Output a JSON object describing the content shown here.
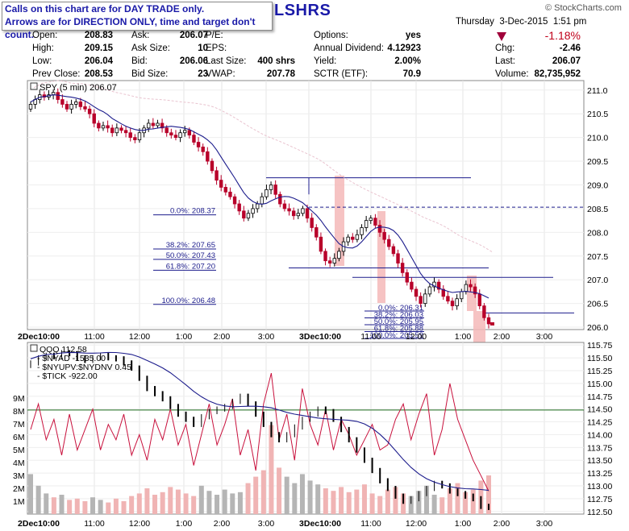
{
  "notice": {
    "line1": "Calls on this chart are for DAY TRADE only.",
    "line2": "Arrows are for DIRECTION ONLY, time and target don't count."
  },
  "title_fragment": "LSHRS",
  "watermark": "© StockCharts.com",
  "header": {
    "day": "Thursday",
    "date": "3-Dec-2015",
    "time": "1:51 pm",
    "change_pct": "-1.18%",
    "fields": [
      {
        "label": "Open:",
        "value": "208.83"
      },
      {
        "label": "High:",
        "value": "209.15"
      },
      {
        "label": "Low:",
        "value": "206.04"
      },
      {
        "label": "Prev Close:",
        "value": "208.53"
      },
      {
        "label": "Ask:",
        "value": "206.07"
      },
      {
        "label": "Ask Size:",
        "value": "10"
      },
      {
        "label": "Bid:",
        "value": "206.06"
      },
      {
        "label": "Bid Size:",
        "value": "23"
      },
      {
        "label": "P/E:",
        "value": ""
      },
      {
        "label": "EPS:",
        "value": ""
      },
      {
        "label": "Last Size:",
        "value": "400 shrs"
      },
      {
        "label": "VWAP:",
        "value": "207.78"
      },
      {
        "label": "Options:",
        "value": "yes"
      },
      {
        "label": "Annual Dividend:",
        "value": "4.12923"
      },
      {
        "label": "Yield:",
        "value": "2.00%"
      },
      {
        "label": "SCTR (ETF):",
        "value": "70.9"
      },
      {
        "label": "Chg:",
        "value": "-2.46"
      },
      {
        "label": "Last:",
        "value": "206.07"
      },
      {
        "label": "Volume:",
        "value": "82,735,952"
      }
    ]
  },
  "colors": {
    "title": "#1a1aa8",
    "up": "#000000",
    "down": "#b8002a",
    "ma": "#1c1c8c",
    "fib": "#1c1c8c",
    "highlight": "#f4b8b8",
    "breadth": "#c8103c",
    "hline": "#1b6b1b",
    "vol_up": "#b5b5b5",
    "vol_down": "#f0b4b4"
  },
  "chart_data": [
    {
      "type": "candlestick",
      "legend": "SPY (5 min) 206.07",
      "x_ticks": [
        "2Dec10:00",
        "11:00",
        "12:00",
        "1:00",
        "2:00",
        "3:00",
        "3Dec10:00",
        "11:00",
        "12:00",
        "1:00",
        "2:00",
        "3:00"
      ],
      "ylim": [
        205.95,
        211.2
      ],
      "y_ticks": [
        206.0,
        206.5,
        207.0,
        207.5,
        208.0,
        208.5,
        209.0,
        209.5,
        210.0,
        210.5,
        211.0
      ],
      "close": [
        210.7,
        210.8,
        210.9,
        210.85,
        210.9,
        210.95,
        210.8,
        210.7,
        210.6,
        210.7,
        210.75,
        210.65,
        210.6,
        210.5,
        210.3,
        210.2,
        210.25,
        210.2,
        210.1,
        210.2,
        210.15,
        210.1,
        210.0,
        209.95,
        210.1,
        210.2,
        210.3,
        210.25,
        210.3,
        210.2,
        210.1,
        210.05,
        210.0,
        210.1,
        210.15,
        210.05,
        209.9,
        209.8,
        209.7,
        209.5,
        209.3,
        209.1,
        208.95,
        208.85,
        208.75,
        208.6,
        208.45,
        208.3,
        208.4,
        208.5,
        208.6,
        208.75,
        208.9,
        209.0,
        208.8,
        208.6,
        208.5,
        208.45,
        208.35,
        208.4,
        208.5,
        208.3,
        208.1,
        207.9,
        207.6,
        207.4,
        207.35,
        207.45,
        207.6,
        207.8,
        207.9,
        207.85,
        207.95,
        208.1,
        208.25,
        208.3,
        208.15,
        208.0,
        207.85,
        207.7,
        207.55,
        207.35,
        207.15,
        206.95,
        206.8,
        206.65,
        206.5,
        206.7,
        206.85,
        206.95,
        206.8,
        206.65,
        206.55,
        206.45,
        206.6,
        206.75,
        206.9,
        206.85,
        206.7,
        206.45,
        206.2,
        206.07
      ],
      "fib_left": [
        {
          "label": "0.0%: 208.37",
          "value": 208.37
        },
        {
          "label": "38.2%: 207.65",
          "value": 207.65
        },
        {
          "label": "50.0%: 207.43",
          "value": 207.43
        },
        {
          "label": "61.8%: 207.20",
          "value": 207.2
        },
        {
          "label": "100.0%: 206.48",
          "value": 206.48
        }
      ],
      "fib_right": [
        {
          "label": "0.0%: 206.31",
          "value": 206.31
        },
        {
          "label": "38.2%: 206.03",
          "value": 206.03
        },
        {
          "label": "50.0%: 205.95",
          "value": 205.95
        },
        {
          "label": "61.8%: 205.88",
          "value": 205.88
        },
        {
          "label": "100.0%: 205.59",
          "value": 205.59
        }
      ],
      "levels": [
        209.15,
        208.53,
        207.25,
        207.05,
        206.3
      ]
    },
    {
      "type": "line+volume",
      "legend": [
        "QQQ 112.58",
        "$NYAD -1535.00",
        "$NYUPV:$NYDNV 0.45",
        "$TICK -922.00"
      ],
      "ylim": [
        112.45,
        115.8
      ],
      "y_ticks": [
        112.5,
        112.75,
        113.0,
        113.25,
        113.5,
        113.75,
        114.0,
        114.25,
        114.5,
        114.75,
        115.0,
        115.25,
        115.5,
        115.75
      ],
      "volume_ticks": [
        "1M",
        "2M",
        "3M",
        "4M",
        "5M",
        "6M",
        "7M",
        "8M",
        "9M"
      ],
      "reference_level": 114.48,
      "close": [
        115.4,
        115.5,
        115.55,
        115.52,
        115.6,
        115.58,
        115.5,
        115.45,
        115.5,
        115.55,
        115.5,
        115.48,
        115.4,
        115.3,
        115.1,
        114.9,
        114.8,
        114.7,
        114.55,
        114.4,
        114.3,
        114.2,
        114.35,
        114.45,
        114.5,
        114.55,
        114.65,
        114.75,
        114.6,
        114.4,
        114.2,
        114.0,
        113.9,
        114.0,
        114.15,
        114.3,
        114.4,
        114.5,
        114.45,
        114.3,
        114.1,
        113.9,
        113.7,
        113.5,
        113.3,
        113.1,
        112.95,
        112.8,
        112.7,
        112.75,
        112.85,
        112.95,
        113.05,
        113.0,
        112.9,
        112.85,
        112.8,
        112.75,
        112.6,
        112.58
      ],
      "breadth": [
        114.1,
        114.6,
        113.9,
        114.3,
        113.6,
        114.4,
        113.7,
        114.1,
        114.5,
        113.7,
        114.2,
        113.9,
        114.4,
        113.6,
        114.0,
        113.5,
        114.3,
        113.9,
        114.5,
        113.8,
        114.2,
        113.4,
        114.0,
        114.6,
        113.8,
        114.2,
        114.7,
        113.6,
        114.1,
        113.3,
        114.6,
        115.2,
        113.9,
        114.4,
        113.5,
        114.9,
        114.2,
        113.8,
        114.5,
        113.7,
        114.3,
        114.0,
        113.6,
        113.9,
        114.2,
        113.7,
        113.8,
        114.3,
        114.6,
        113.9,
        114.4,
        114.8,
        113.6,
        114.1,
        115.0,
        114.3,
        113.9,
        113.5,
        113.2,
        112.9
      ],
      "volume": [
        3.1,
        2.2,
        1.6,
        1.3,
        1.5,
        1.1,
        1.2,
        1.0,
        1.3,
        1.1,
        0.9,
        1.2,
        1.0,
        1.4,
        1.6,
        2.0,
        1.5,
        1.7,
        2.1,
        1.9,
        1.6,
        1.4,
        2.2,
        1.8,
        1.5,
        1.9,
        1.6,
        1.7,
        2.4,
        2.9,
        3.4,
        6.9,
        3.6,
        2.9,
        2.4,
        3.1,
        2.6,
        2.3,
        2.0,
        1.8,
        2.1,
        1.7,
        1.9,
        2.3,
        1.6,
        1.4,
        1.9,
        2.1,
        1.6,
        1.4,
        1.8,
        2.2,
        1.5,
        1.3,
        2.0,
        2.4,
        1.7,
        1.9,
        2.6,
        3.0
      ]
    }
  ]
}
